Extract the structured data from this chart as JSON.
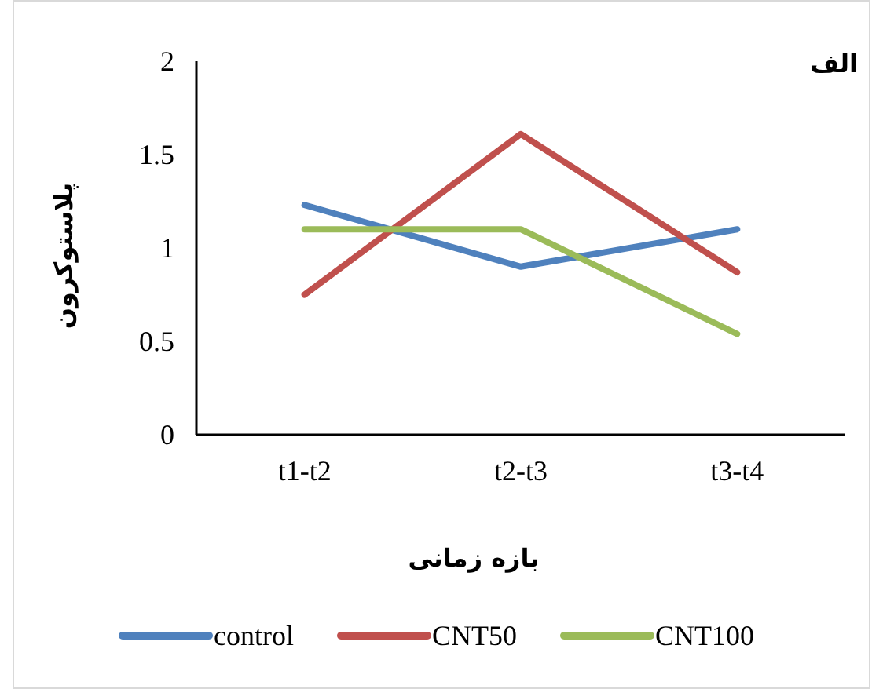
{
  "chart_data": {
    "type": "line",
    "title": "الف",
    "xlabel": "بازه زمانی",
    "ylabel": "پلاستوکرون",
    "categories": [
      "t1-t2",
      "t2-t3",
      "t3-t4"
    ],
    "series": [
      {
        "name": "control",
        "color": "#4f81bd",
        "values": [
          1.23,
          0.9,
          1.1
        ]
      },
      {
        "name": "CNT50",
        "color": "#c0504d",
        "values": [
          0.75,
          1.61,
          0.87
        ]
      },
      {
        "name": "CNT100",
        "color": "#9bbb59",
        "values": [
          1.1,
          1.1,
          0.54
        ]
      }
    ],
    "ylim": [
      0,
      2
    ],
    "yticks": [
      0,
      0.5,
      1,
      1.5,
      2
    ],
    "grid": false,
    "legend": "bottom",
    "marker": "none",
    "line_style": "solid"
  }
}
